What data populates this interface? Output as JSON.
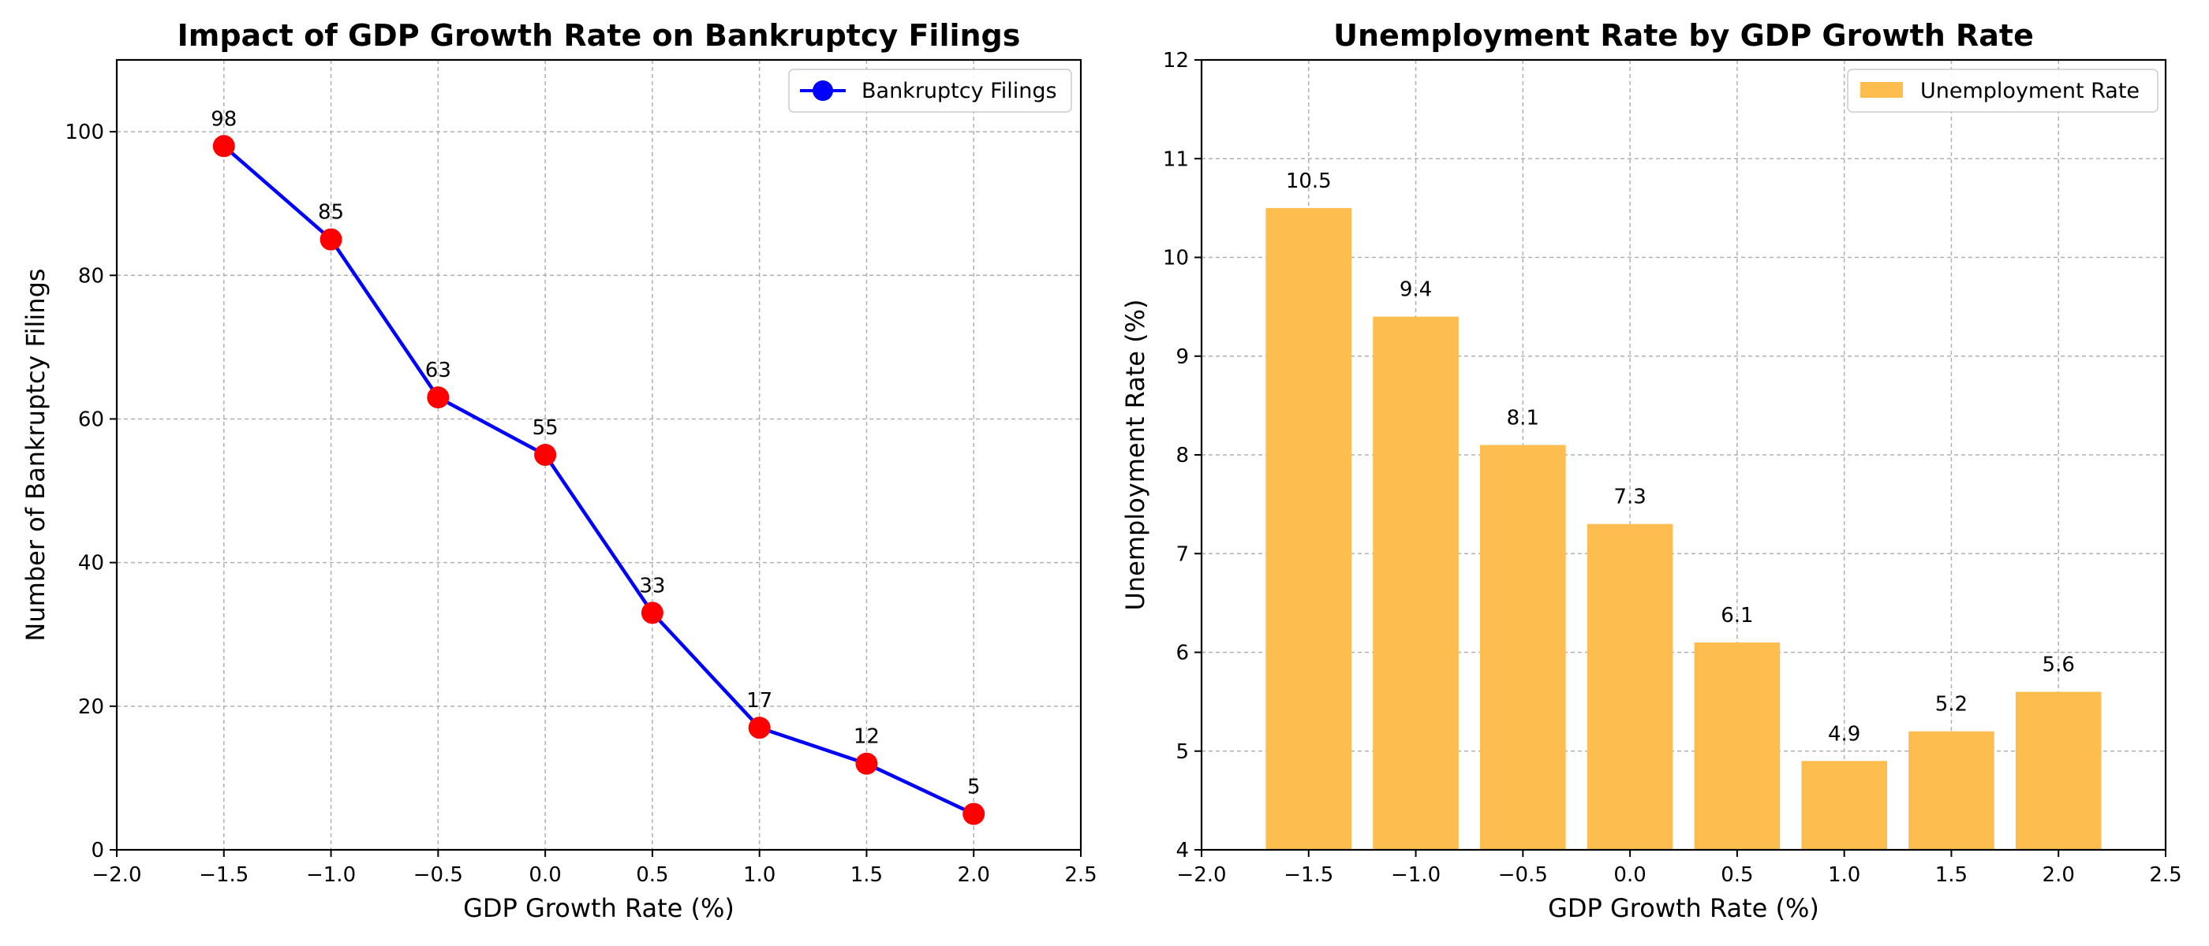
{
  "chart_data": [
    {
      "type": "line",
      "title": "Impact of GDP Growth Rate on Bankruptcy Filings",
      "xlabel": "GDP Growth Rate (%)",
      "ylabel": "Number of Bankruptcy Filings",
      "xlim": [
        -2.0,
        2.5
      ],
      "ylim": [
        0,
        110
      ],
      "xticks": [
        -2.0,
        -1.5,
        -1.0,
        -0.5,
        0.0,
        0.5,
        1.0,
        1.5,
        2.0,
        2.5
      ],
      "xtick_labels": [
        "−2.0",
        "−1.5",
        "−1.0",
        "−0.5",
        "0.0",
        "0.5",
        "1.0",
        "1.5",
        "2.0",
        "2.5"
      ],
      "yticks": [
        0,
        20,
        40,
        60,
        80,
        100
      ],
      "ytick_labels": [
        "0",
        "20",
        "40",
        "60",
        "80",
        "100"
      ],
      "grid": true,
      "legend_position": "top-right",
      "series": [
        {
          "name": "Bankruptcy Filings",
          "x": [
            -1.5,
            -1.0,
            -0.5,
            0.0,
            0.5,
            1.0,
            1.5,
            2.0
          ],
          "y": [
            98,
            85,
            63,
            55,
            33,
            17,
            12,
            5
          ],
          "data_labels": [
            "98",
            "85",
            "63",
            "55",
            "33",
            "17",
            "12",
            "5"
          ],
          "line_color": "#0000ff",
          "marker_color": "#ff0000",
          "legend_marker_color": "#0000ff"
        }
      ]
    },
    {
      "type": "bar",
      "title": "Unemployment Rate by GDP Growth Rate",
      "xlabel": "GDP Growth Rate (%)",
      "ylabel": "Unemployment Rate (%)",
      "xlim": [
        -2.0,
        2.5
      ],
      "ylim": [
        4,
        12
      ],
      "xticks": [
        -2.0,
        -1.5,
        -1.0,
        -0.5,
        0.0,
        0.5,
        1.0,
        1.5,
        2.0,
        2.5
      ],
      "xtick_labels": [
        "−2.0",
        "−1.5",
        "−1.0",
        "−0.5",
        "0.0",
        "0.5",
        "1.0",
        "1.5",
        "2.0",
        "2.5"
      ],
      "yticks": [
        4,
        5,
        6,
        7,
        8,
        9,
        10,
        11,
        12
      ],
      "ytick_labels": [
        "4",
        "5",
        "6",
        "7",
        "8",
        "9",
        "10",
        "11",
        "12"
      ],
      "grid": true,
      "legend_position": "top-right",
      "bar_width": 0.4,
      "series": [
        {
          "name": "Unemployment Rate",
          "x": [
            -1.5,
            -1.0,
            -0.5,
            0.0,
            0.5,
            1.0,
            1.5,
            2.0
          ],
          "values": [
            10.5,
            9.4,
            8.1,
            7.3,
            6.1,
            4.9,
            5.2,
            5.6
          ],
          "data_labels": [
            "10.5",
            "9.4",
            "8.1",
            "7.3",
            "6.1",
            "4.9",
            "5.2",
            "5.6"
          ],
          "color": "#fdbe4f"
        }
      ]
    }
  ]
}
